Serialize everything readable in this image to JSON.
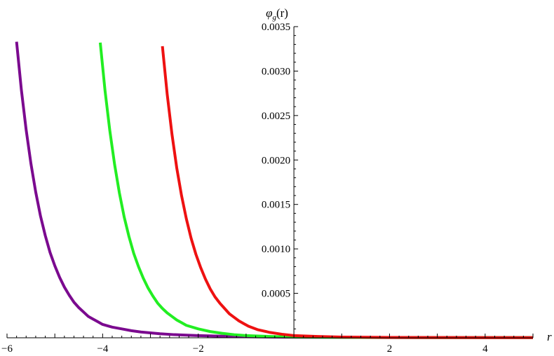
{
  "chart_data": {
    "type": "line",
    "title": "",
    "xlabel": "r",
    "ylabel": "φ_g(r)",
    "ylabel_parts": {
      "main": "φ",
      "sub": "g",
      "arg": "(r)"
    },
    "xlim": [
      -6.0,
      5.0
    ],
    "ylim": [
      0,
      0.0035
    ],
    "x_ticks": [
      -6,
      -4,
      -2,
      2,
      4
    ],
    "x_tick_labels": [
      "−6",
      "−4",
      "−2",
      "2",
      "4"
    ],
    "y_ticks": [
      0.0005,
      0.001,
      0.0015,
      0.002,
      0.0025,
      0.003,
      0.0035
    ],
    "y_tick_labels": [
      "0.0005",
      "0.0010",
      "0.0015",
      "0.0020",
      "0.0025",
      "0.0030",
      "0.0035"
    ],
    "grid": false,
    "legend": "none",
    "series": [
      {
        "color": "#7b0a8f",
        "x": [
          -5.8,
          -5.7,
          -5.6,
          -5.5,
          -5.4,
          -5.3,
          -5.2,
          -5.1,
          -5.0,
          -4.9,
          -4.8,
          -4.7,
          -4.6,
          -4.5,
          -4.4,
          -4.3,
          -4.2,
          -4.1,
          -4.0,
          -3.8,
          -3.6,
          -3.4,
          -3.2,
          -3.0,
          -2.8,
          -2.5,
          -2.0,
          -1.5,
          -1.0,
          0.0,
          1.0,
          2.0,
          3.0,
          4.0,
          5.0
        ],
        "y": [
          0.00333,
          0.00279,
          0.00234,
          0.00196,
          0.00164,
          0.00137,
          0.00115,
          0.00096,
          0.00081,
          0.00068,
          0.00057,
          0.00048,
          0.0004,
          0.00034,
          0.00029,
          0.00024,
          0.00021,
          0.00018,
          0.00015,
          0.00012,
          0.0001,
          8e-05,
          6.5e-05,
          5.5e-05,
          4.5e-05,
          3.5e-05,
          2.5e-05,
          1.8e-05,
          1.2e-05,
          6e-06,
          4e-06,
          3e-06,
          2e-06,
          2e-06,
          2e-06
        ]
      },
      {
        "color": "#22ee22",
        "x": [
          -4.05,
          -3.95,
          -3.85,
          -3.75,
          -3.65,
          -3.55,
          -3.45,
          -3.35,
          -3.25,
          -3.15,
          -3.05,
          -2.95,
          -2.85,
          -2.75,
          -2.65,
          -2.55,
          -2.45,
          -2.35,
          -2.25,
          -2.0,
          -1.75,
          -1.5,
          -1.25,
          -1.0,
          -0.5,
          0.0,
          1.0,
          2.0,
          3.0,
          4.0,
          5.0
        ],
        "y": [
          0.00332,
          0.00278,
          0.00233,
          0.00195,
          0.00163,
          0.00136,
          0.00114,
          0.00095,
          0.0008,
          0.00067,
          0.00056,
          0.00047,
          0.00039,
          0.00033,
          0.00028,
          0.00024,
          0.0002,
          0.00017,
          0.00014,
          0.0001,
          7e-05,
          5e-05,
          3.5e-05,
          2.5e-05,
          1.5e-05,
          9e-06,
          5e-06,
          3e-06,
          2e-06,
          2e-06,
          2e-06
        ]
      },
      {
        "color": "#ee1111",
        "x": [
          -2.75,
          -2.65,
          -2.55,
          -2.45,
          -2.35,
          -2.25,
          -2.15,
          -2.05,
          -1.95,
          -1.85,
          -1.75,
          -1.65,
          -1.55,
          -1.45,
          -1.35,
          -1.25,
          -1.15,
          -1.05,
          -0.95,
          -0.75,
          -0.5,
          -0.25,
          0.0,
          0.5,
          1.0,
          2.0,
          3.0,
          4.0,
          5.0
        ],
        "y": [
          0.00328,
          0.00274,
          0.00229,
          0.00191,
          0.0016,
          0.00134,
          0.00112,
          0.00094,
          0.00079,
          0.00066,
          0.00055,
          0.00046,
          0.00039,
          0.00033,
          0.00027,
          0.00023,
          0.00019,
          0.00016,
          0.00013,
          9e-05,
          6e-05,
          4e-05,
          2.5e-05,
          1.5e-05,
          8e-06,
          4e-06,
          3e-06,
          2e-06,
          2e-06
        ]
      }
    ]
  }
}
